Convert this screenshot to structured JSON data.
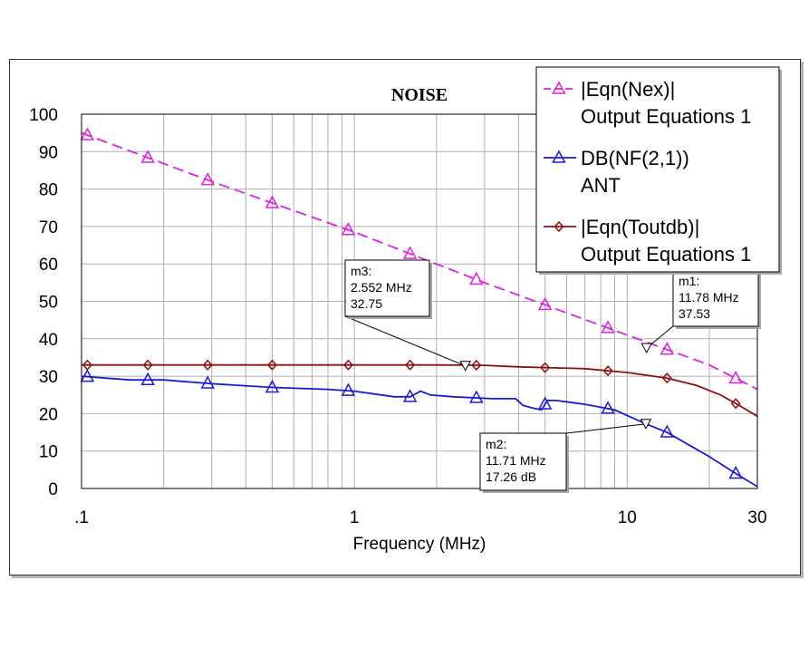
{
  "chart_data": {
    "type": "line",
    "title": "NOISE",
    "xlabel": "Frequency (MHz)",
    "ylabel": "",
    "x_scale": "log",
    "xlim": [
      0.1,
      30
    ],
    "ylim": [
      0,
      100
    ],
    "x_ticks": [
      {
        "value": 0.1,
        "label": ".1"
      },
      {
        "value": 1,
        "label": "1"
      },
      {
        "value": 10,
        "label": "10"
      },
      {
        "value": 30,
        "label": "30"
      }
    ],
    "y_ticks": [
      0,
      10,
      20,
      30,
      40,
      50,
      60,
      70,
      80,
      90,
      100
    ],
    "grid": true,
    "series": [
      {
        "name": "|Eqn(Nex)|",
        "subname": "Output Equations 1",
        "color": "#e020e0",
        "dash": "dashed",
        "marker": "triangle",
        "points": [
          [
            0.1,
            95
          ],
          [
            0.3,
            82
          ],
          [
            1,
            68.5
          ],
          [
            3,
            55
          ],
          [
            10,
            41
          ],
          [
            20,
            33
          ],
          [
            30,
            26.5
          ]
        ],
        "marker_x": [
          0.105,
          0.175,
          0.29,
          0.5,
          0.95,
          1.6,
          2.8,
          5,
          8.5,
          14,
          25
        ]
      },
      {
        "name": "DB(NF(2,1))",
        "subname": "ANT",
        "color": "#1a1ad0",
        "dash": "solid",
        "marker": "triangle",
        "points": [
          [
            0.1,
            30
          ],
          [
            0.15,
            29
          ],
          [
            0.2,
            29
          ],
          [
            0.3,
            28
          ],
          [
            0.5,
            27
          ],
          [
            0.8,
            26.5
          ],
          [
            1,
            26
          ],
          [
            1.4,
            24.5
          ],
          [
            1.6,
            24.5
          ],
          [
            1.75,
            26
          ],
          [
            1.9,
            25
          ],
          [
            2.3,
            24.5
          ],
          [
            3.2,
            24
          ],
          [
            3.9,
            24
          ],
          [
            4.15,
            22.2
          ],
          [
            4.5,
            21.5
          ],
          [
            4.85,
            21
          ],
          [
            5.1,
            23.5
          ],
          [
            5.5,
            23.5
          ],
          [
            7,
            22.5
          ],
          [
            9,
            21
          ],
          [
            11.71,
            17.26
          ],
          [
            14,
            15
          ],
          [
            20,
            8.5
          ],
          [
            25,
            4
          ],
          [
            30,
            0.5
          ]
        ],
        "marker_x": [
          0.105,
          0.175,
          0.29,
          0.5,
          0.95,
          1.6,
          2.8,
          5,
          8.5,
          14,
          25
        ]
      },
      {
        "name": "|Eqn(Toutdb)|",
        "subname": "Output Equations 1",
        "color": "#8b1010",
        "dash": "solid",
        "marker": "diamond",
        "points": [
          [
            0.1,
            33
          ],
          [
            1,
            33
          ],
          [
            2,
            33
          ],
          [
            3,
            32.9
          ],
          [
            4,
            32.5
          ],
          [
            5,
            32.3
          ],
          [
            7,
            32
          ],
          [
            10,
            31
          ],
          [
            14,
            29.5
          ],
          [
            18,
            27.5
          ],
          [
            22,
            25
          ],
          [
            26,
            22
          ],
          [
            30,
            19.3
          ]
        ],
        "marker_x": [
          0.105,
          0.175,
          0.29,
          0.5,
          0.95,
          1.6,
          2.8,
          5,
          8.5,
          14,
          25
        ]
      }
    ],
    "markers": [
      {
        "id": "m3",
        "x_label": "2.552 MHz",
        "value_label": "32.75",
        "x": 2.552,
        "y": 32.75
      },
      {
        "id": "m1",
        "x_label": "11.78 MHz",
        "value_label": "37.53",
        "x": 11.78,
        "y": 37.53
      },
      {
        "id": "m2",
        "x_label": "11.71 MHz",
        "value_label": "17.26 dB",
        "x": 11.71,
        "y": 17.26
      }
    ]
  }
}
